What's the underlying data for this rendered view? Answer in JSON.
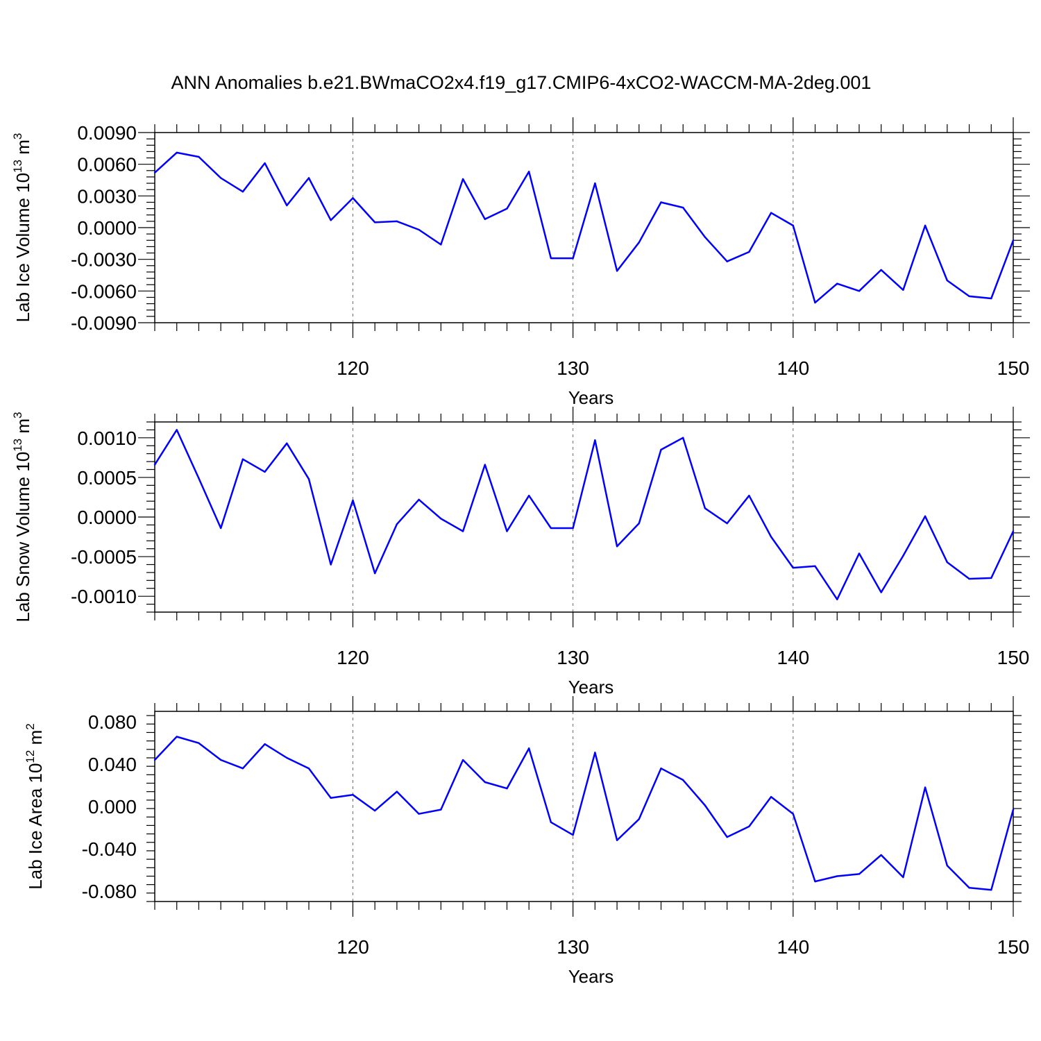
{
  "figure": {
    "title": "ANN Anomalies b.e21.BWmaCO2x4.f19_g17.CMIP6-4xCO2-WACCM-MA-2deg.001",
    "line_color": "#0000ff"
  },
  "chart_data": [
    {
      "type": "line",
      "ylabel": {
        "text": "Lab Ice Volume 10",
        "exp": "13",
        "unit": " m",
        "unit_exp": "3"
      },
      "xlabel": "Years",
      "xlim": [
        111,
        150
      ],
      "ylim": [
        -0.009,
        0.009
      ],
      "xticks": [
        120,
        130,
        140,
        150
      ],
      "yticks": [
        0.009,
        0.006,
        0.003,
        0.0,
        -0.003,
        -0.006,
        -0.009
      ],
      "ytick_labels": [
        "0.0090",
        "0.0060",
        "0.0030",
        "0.0000",
        "-0.0030",
        "-0.0060",
        "-0.0090"
      ],
      "grid_x": [
        120,
        130,
        140
      ],
      "grid": true,
      "x_start": 111,
      "values": [
        0.0052,
        0.0071,
        0.0067,
        0.0047,
        0.0034,
        0.0061,
        0.0021,
        0.0047,
        0.0007,
        0.0028,
        0.0005,
        0.0006,
        -0.0002,
        -0.0016,
        0.0046,
        0.0008,
        0.0018,
        0.0053,
        -0.0029,
        -0.0029,
        0.0042,
        -0.0041,
        -0.0014,
        0.0024,
        0.0019,
        -0.0009,
        -0.0032,
        -0.0023,
        0.0014,
        0.0002,
        -0.0071,
        -0.0053,
        -0.006,
        -0.004,
        -0.0059,
        0.0002,
        -0.005,
        -0.0065,
        -0.0067,
        -0.0012
      ]
    },
    {
      "type": "line",
      "ylabel": {
        "text": "Lab Snow Volume 10",
        "exp": "13",
        "unit": " m",
        "unit_exp": "3"
      },
      "xlabel": "Years",
      "xlim": [
        111,
        150
      ],
      "ylim": [
        -0.0012,
        0.0012
      ],
      "xticks": [
        120,
        130,
        140,
        150
      ],
      "yticks": [
        0.001,
        0.0005,
        0.0,
        -0.0005,
        -0.001
      ],
      "ytick_labels": [
        "0.0010",
        "0.0005",
        "0.0000",
        "-0.0005",
        "-0.0010"
      ],
      "grid_x": [
        120,
        130,
        140
      ],
      "grid": true,
      "x_start": 111,
      "values": [
        0.00066,
        0.0011,
        0.00049,
        -0.00014,
        0.00073,
        0.00057,
        0.00093,
        0.00048,
        -0.0006,
        0.00021,
        -0.00071,
        -9e-05,
        0.00022,
        -2e-05,
        -0.00018,
        0.00066,
        -0.00018,
        0.00027,
        -0.00014,
        -0.00014,
        0.00097,
        -0.00037,
        -8e-05,
        0.00085,
        0.001,
        0.00011,
        -8e-05,
        0.00027,
        -0.00025,
        -0.00064,
        -0.00062,
        -0.00104,
        -0.00046,
        -0.00095,
        -0.00049,
        1e-05,
        -0.00057,
        -0.00078,
        -0.00077,
        -0.00018
      ]
    },
    {
      "type": "line",
      "ylabel": {
        "text": "Lab Ice Area 10",
        "exp": "12",
        "unit": " m",
        "unit_exp": "2"
      },
      "xlabel": "Years",
      "xlim": [
        111,
        150
      ],
      "ylim": [
        -0.09,
        0.09
      ],
      "xticks": [
        120,
        130,
        140,
        150
      ],
      "yticks": [
        0.08,
        0.04,
        0.0,
        -0.04,
        -0.08
      ],
      "ytick_labels": [
        "0.080",
        "0.040",
        "0.000",
        "-0.040",
        "-0.080"
      ],
      "grid_x": [
        120,
        130,
        140
      ],
      "grid": true,
      "x_start": 111,
      "values": [
        0.044,
        0.066,
        0.06,
        0.044,
        0.036,
        0.059,
        0.046,
        0.036,
        0.008,
        0.011,
        -0.004,
        0.014,
        -0.007,
        -0.003,
        0.044,
        0.023,
        0.017,
        0.055,
        -0.015,
        -0.027,
        0.051,
        -0.032,
        -0.012,
        0.036,
        0.025,
        0.001,
        -0.029,
        -0.019,
        0.009,
        -0.007,
        -0.071,
        -0.066,
        -0.064,
        -0.046,
        -0.067,
        0.018,
        -0.056,
        -0.077,
        -0.079,
        -0.003
      ]
    }
  ]
}
